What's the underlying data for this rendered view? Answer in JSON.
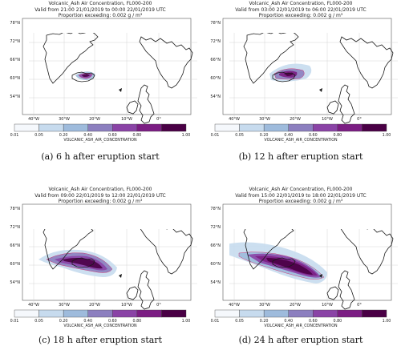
{
  "figure": {
    "common": {
      "lat_labels": [
        "78°N",
        "72°N",
        "66°N",
        "60°N",
        "54°N"
      ],
      "lon_labels": [
        "40°W",
        "30°W",
        "20°W",
        "10°W",
        "0°"
      ],
      "colorbar_ticks": [
        "0.01",
        "0.05",
        "0.20",
        "0.40",
        "0.60",
        "0.80",
        "1.00"
      ],
      "colorbar_label": "VOLCANIC_ASH_AIR_CONCENTRATION",
      "colorbar_colors": [
        "#f5f8fc",
        "#c7dbee",
        "#9ebbdc",
        "#8c7fbf",
        "#8a43a6",
        "#7b1d83",
        "#4a0045"
      ],
      "title_line1": "Volcanic_Ash Air Concentration, FL000-200",
      "title_line3": "Proportion exceeding: 0.002 g / m³"
    },
    "panels": [
      {
        "valid": "Valid from 21:00 21/01/2019 to 00:00 22/01/2019 UTC",
        "caption": "(a)  6 h after eruption start"
      },
      {
        "valid": "Valid from 03:00 22/01/2019 to 06:00 22/01/2019 UTC",
        "caption": "(b)  12 h after eruption start"
      },
      {
        "valid": "Valid from 09:00 22/01/2019 to 12:00 22/01/2019 UTC",
        "caption": "(c)  18 h after eruption start"
      },
      {
        "valid": "Valid from 15:00 22/01/2019 to 18:00 22/01/2019 UTC",
        "caption": "(d)  24 h after eruption start"
      }
    ]
  }
}
